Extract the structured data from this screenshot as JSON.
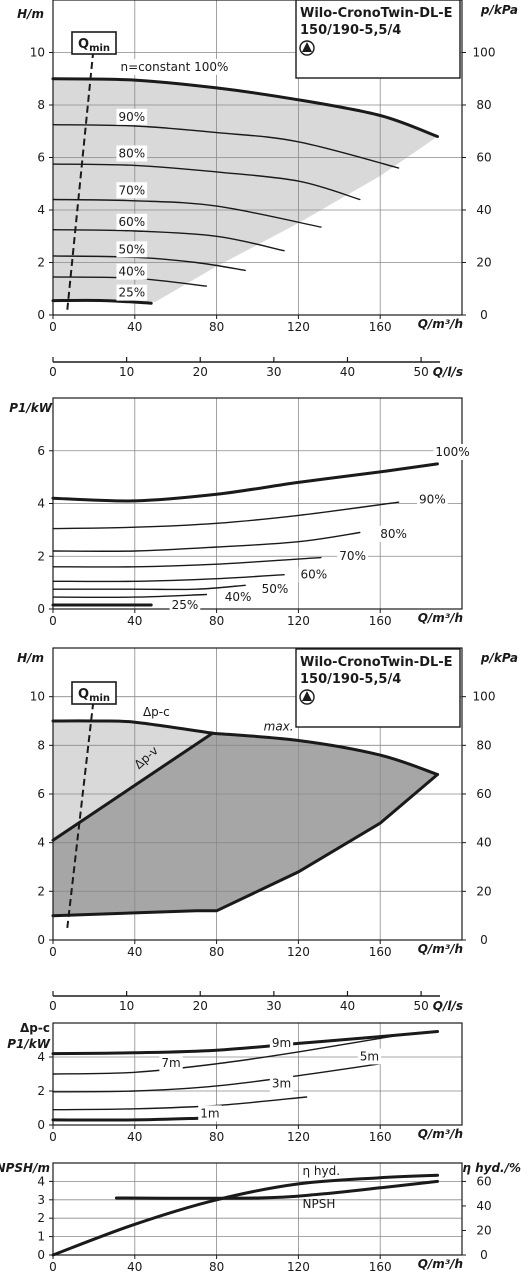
{
  "pump_label": {
    "line1": "Wilo-CronoTwin-DL-E",
    "line2": "150/190-5,5/4"
  },
  "qmin_label": {
    "base": "Q",
    "sub": "min"
  },
  "colors": {
    "ink": "#1a1a1a",
    "grid": "#8a8a8a",
    "light_fill": "#d9d9d9",
    "dark_fill": "#a6a6a6"
  },
  "chart_data": [
    {
      "id": "head_speed",
      "type": "line",
      "xlabel": "Q/m³/h",
      "ylabel": "H/m",
      "y2label": "p/kPa",
      "xlim": [
        0,
        200
      ],
      "ylim": [
        0,
        12
      ],
      "xticks": [
        0,
        40,
        80,
        120,
        160
      ],
      "yticks": [
        0,
        2,
        4,
        6,
        8,
        10
      ],
      "y2ticks": [
        0,
        20,
        40,
        60,
        80,
        100
      ],
      "y2_per_y": 10,
      "grid": true,
      "area_upper": [
        [
          0,
          9.0
        ],
        [
          40,
          8.95
        ],
        [
          80,
          8.65
        ],
        [
          120,
          8.2
        ],
        [
          160,
          7.6
        ],
        [
          188,
          6.8
        ]
      ],
      "area_lower": [
        [
          188,
          6.8
        ],
        [
          160,
          5.3
        ],
        [
          120,
          3.5
        ],
        [
          80,
          1.85
        ],
        [
          50,
          0.5
        ],
        [
          0,
          0.55
        ]
      ],
      "series": [
        {
          "name": "100%",
          "label": "n=constant 100%",
          "label_at": [
            33,
            9.3
          ],
          "bold": true,
          "x": [
            0,
            40,
            80,
            120,
            160,
            188
          ],
          "y": [
            9.0,
            8.95,
            8.65,
            8.2,
            7.6,
            6.8
          ]
        },
        {
          "name": "90%",
          "label": "90%",
          "label_at": [
            32,
            7.4
          ],
          "bold": false,
          "x": [
            0,
            40,
            80,
            120,
            169
          ],
          "y": [
            7.25,
            7.2,
            6.95,
            6.6,
            5.6
          ]
        },
        {
          "name": "80%",
          "label": "80%",
          "label_at": [
            32,
            6.0
          ],
          "bold": false,
          "x": [
            0,
            40,
            80,
            120,
            150
          ],
          "y": [
            5.75,
            5.7,
            5.45,
            5.1,
            4.4
          ]
        },
        {
          "name": "70%",
          "label": "70%",
          "label_at": [
            32,
            4.6
          ],
          "bold": false,
          "x": [
            0,
            40,
            80,
            131
          ],
          "y": [
            4.4,
            4.35,
            4.15,
            3.35
          ]
        },
        {
          "name": "60%",
          "label": "60%",
          "label_at": [
            32,
            3.4
          ],
          "bold": false,
          "x": [
            0,
            40,
            80,
            113
          ],
          "y": [
            3.25,
            3.2,
            3.0,
            2.45
          ]
        },
        {
          "name": "50%",
          "label": "50%",
          "label_at": [
            32,
            2.35
          ],
          "bold": false,
          "x": [
            0,
            40,
            70,
            94
          ],
          "y": [
            2.25,
            2.2,
            2.0,
            1.7
          ]
        },
        {
          "name": "40%",
          "label": "40%",
          "label_at": [
            32,
            1.5
          ],
          "bold": false,
          "x": [
            0,
            40,
            75
          ],
          "y": [
            1.45,
            1.4,
            1.1
          ]
        },
        {
          "name": "25%",
          "label": "25%",
          "label_at": [
            32,
            0.7
          ],
          "bold": true,
          "x": [
            0,
            25,
            48
          ],
          "y": [
            0.55,
            0.55,
            0.45
          ]
        }
      ],
      "qmin": {
        "x": [
          7,
          20
        ],
        "y": [
          0.2,
          10.3
        ]
      }
    },
    {
      "id": "flow_axis_1",
      "type": "axis",
      "xlabel": "Q/l/s",
      "ticks": [
        0,
        10,
        20,
        30,
        40,
        50
      ],
      "q_m3h_per_ls": 3.6
    },
    {
      "id": "power_speed",
      "type": "line",
      "xlabel": "Q/m³/h",
      "ylabel": "P1/kW",
      "xlim": [
        0,
        200
      ],
      "ylim": [
        0,
        8
      ],
      "xticks": [
        0,
        40,
        80,
        120,
        160
      ],
      "yticks": [
        0,
        2,
        4,
        6
      ],
      "grid": true,
      "series": [
        {
          "name": "100%",
          "label": "100%",
          "label_at": [
            187,
            5.8
          ],
          "bold": true,
          "x": [
            0,
            40,
            80,
            120,
            160,
            188
          ],
          "y": [
            4.2,
            4.1,
            4.35,
            4.8,
            5.2,
            5.5
          ]
        },
        {
          "name": "90%",
          "label": "90%",
          "label_at": [
            179,
            4.0
          ],
          "bold": false,
          "x": [
            0,
            40,
            80,
            120,
            169
          ],
          "y": [
            3.05,
            3.1,
            3.25,
            3.55,
            4.05
          ]
        },
        {
          "name": "80%",
          "label": "80%",
          "label_at": [
            160,
            2.7
          ],
          "bold": false,
          "x": [
            0,
            40,
            80,
            120,
            150
          ],
          "y": [
            2.2,
            2.2,
            2.35,
            2.55,
            2.9
          ]
        },
        {
          "name": "70%",
          "label": "70%",
          "label_at": [
            140,
            1.85
          ],
          "bold": false,
          "x": [
            0,
            40,
            80,
            131
          ],
          "y": [
            1.6,
            1.6,
            1.7,
            1.95
          ]
        },
        {
          "name": "60%",
          "label": "60%",
          "label_at": [
            121,
            1.15
          ],
          "bold": false,
          "x": [
            0,
            40,
            80,
            113
          ],
          "y": [
            1.05,
            1.05,
            1.15,
            1.3
          ]
        },
        {
          "name": "50%",
          "label": "50%",
          "label_at": [
            102,
            0.6
          ],
          "bold": false,
          "x": [
            0,
            40,
            70,
            94
          ],
          "y": [
            0.75,
            0.75,
            0.75,
            0.9
          ]
        },
        {
          "name": "40%",
          "label": "40%",
          "label_at": [
            84,
            0.3
          ],
          "bold": false,
          "x": [
            0,
            40,
            75
          ],
          "y": [
            0.45,
            0.45,
            0.55
          ]
        },
        {
          "name": "25%",
          "label": "25%",
          "label_at": [
            58,
            0.0
          ],
          "bold": true,
          "x": [
            0,
            25,
            48
          ],
          "y": [
            0.15,
            0.15,
            0.15
          ]
        }
      ]
    },
    {
      "id": "head_control",
      "type": "area",
      "xlabel": "Q/m³/h",
      "ylabel": "H/m",
      "y2label": "p/kPa",
      "xlim": [
        0,
        200
      ],
      "ylim": [
        0,
        12
      ],
      "xticks": [
        0,
        40,
        80,
        120,
        160
      ],
      "yticks": [
        0,
        2,
        4,
        6,
        8,
        10
      ],
      "y2ticks": [
        0,
        20,
        40,
        60,
        80,
        100
      ],
      "y2_per_y": 10,
      "grid": true,
      "dpc_area": [
        [
          0,
          9.0
        ],
        [
          20,
          9.0
        ],
        [
          40,
          8.95
        ],
        [
          78,
          8.5
        ],
        [
          0,
          4.1
        ]
      ],
      "dpv_area": [
        [
          0,
          4.1
        ],
        [
          78,
          8.5
        ],
        [
          120,
          8.2
        ],
        [
          160,
          7.6
        ],
        [
          188,
          6.8
        ],
        [
          160,
          4.8
        ],
        [
          120,
          2.8
        ],
        [
          80,
          1.2
        ],
        [
          0,
          1.0
        ]
      ],
      "series": [
        {
          "name": "Δp-c",
          "label": "Δp-c",
          "label_at": [
            44,
            9.2
          ],
          "bold": true,
          "x": [
            0,
            20,
            40,
            78
          ],
          "y": [
            9.0,
            9.0,
            8.95,
            8.5
          ]
        },
        {
          "name": "Δp-v",
          "label": "Δp-v",
          "label_at": [
            42,
            7.0
          ],
          "bold": true,
          "x": [
            0,
            78
          ],
          "y": [
            4.1,
            8.5
          ]
        },
        {
          "name": "max.",
          "label": "max.",
          "label_at": [
            103,
            8.6
          ],
          "bold": true,
          "x": [
            78,
            120,
            160,
            188
          ],
          "y": [
            8.5,
            8.2,
            7.6,
            6.8
          ]
        },
        {
          "name": "max-low",
          "label": "",
          "bold": true,
          "x": [
            188,
            160,
            120,
            80,
            70,
            0
          ],
          "y": [
            6.8,
            4.8,
            2.8,
            1.2,
            1.2,
            1.0
          ]
        }
      ],
      "qmin": {
        "x": [
          7,
          20
        ],
        "y": [
          0.5,
          10.0
        ]
      }
    },
    {
      "id": "flow_axis_2",
      "type": "axis",
      "xlabel": "Q/l/s",
      "ticks": [
        0,
        10,
        20,
        30,
        40,
        50
      ],
      "q_m3h_per_ls": 3.6
    },
    {
      "id": "power_control",
      "type": "line",
      "xlabel": "Q/m³/h",
      "ylabel": "P1/kW",
      "ylabel_top": "Δp-c",
      "xlim": [
        0,
        200
      ],
      "ylim": [
        0,
        6
      ],
      "xticks": [
        0,
        40,
        80,
        120,
        160
      ],
      "yticks": [
        0,
        2,
        4
      ],
      "grid": true,
      "series": [
        {
          "name": "9m",
          "label": "9m",
          "label_at": [
            107,
            4.6
          ],
          "bold": true,
          "x": [
            0,
            40,
            80,
            120,
            160,
            188
          ],
          "y": [
            4.2,
            4.25,
            4.4,
            4.8,
            5.2,
            5.5
          ]
        },
        {
          "name": "7m",
          "label": "7m",
          "label_at": [
            53,
            3.4
          ],
          "bold": false,
          "x": [
            0,
            40,
            80,
            120,
            170
          ],
          "y": [
            3.0,
            3.1,
            3.6,
            4.3,
            5.3
          ]
        },
        {
          "name": "5m",
          "label": "5m",
          "label_at": [
            150,
            3.8
          ],
          "bold": false,
          "x": [
            0,
            40,
            80,
            120,
            160
          ],
          "y": [
            1.95,
            2.0,
            2.3,
            2.9,
            3.6
          ]
        },
        {
          "name": "3m",
          "label": "3m",
          "label_at": [
            107,
            2.2
          ],
          "bold": false,
          "x": [
            0,
            40,
            80,
            124
          ],
          "y": [
            0.9,
            0.95,
            1.15,
            1.65
          ]
        },
        {
          "name": "1m",
          "label": "1m",
          "label_at": [
            72,
            0.45
          ],
          "bold": true,
          "x": [
            0,
            40,
            72
          ],
          "y": [
            0.3,
            0.3,
            0.4
          ]
        }
      ]
    },
    {
      "id": "npsh_efficiency",
      "type": "line",
      "xlabel": "Q/m³/h",
      "ylabel": "NPSH/m",
      "y2label": "η hyd./%",
      "xlim": [
        0,
        200
      ],
      "ylim": [
        0,
        5
      ],
      "xticks": [
        0,
        40,
        80,
        120,
        160
      ],
      "yticks": [
        0,
        1,
        2,
        3,
        4
      ],
      "y2ticks": [
        0,
        20,
        40,
        60
      ],
      "y2_per_y": 15,
      "grid": true,
      "series": [
        {
          "name": "η hyd.",
          "label": "η hyd.",
          "label_at": [
            122,
            4.35
          ],
          "axis": "y2",
          "bold": true,
          "x": [
            0,
            40,
            80,
            120,
            160,
            188
          ],
          "y": [
            0,
            25,
            45,
            58,
            63,
            65
          ]
        },
        {
          "name": "NPSH",
          "label": "NPSH",
          "label_at": [
            122,
            2.55
          ],
          "axis": "y",
          "bold": true,
          "x": [
            31,
            100,
            130,
            160,
            188
          ],
          "y": [
            3.1,
            3.1,
            3.3,
            3.65,
            4.0
          ]
        }
      ]
    }
  ]
}
